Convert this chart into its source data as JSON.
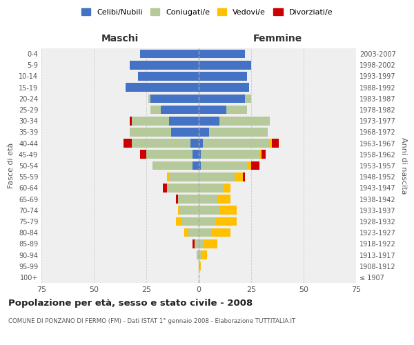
{
  "age_groups": [
    "100+",
    "95-99",
    "90-94",
    "85-89",
    "80-84",
    "75-79",
    "70-74",
    "65-69",
    "60-64",
    "55-59",
    "50-54",
    "45-49",
    "40-44",
    "35-39",
    "30-34",
    "25-29",
    "20-24",
    "15-19",
    "10-14",
    "5-9",
    "0-4"
  ],
  "birth_years": [
    "≤ 1907",
    "1908-1912",
    "1913-1917",
    "1918-1922",
    "1923-1927",
    "1928-1932",
    "1933-1937",
    "1938-1942",
    "1943-1947",
    "1948-1952",
    "1953-1957",
    "1958-1962",
    "1963-1967",
    "1968-1972",
    "1973-1977",
    "1978-1982",
    "1983-1987",
    "1988-1992",
    "1993-1997",
    "1998-2002",
    "2003-2007"
  ],
  "maschi": {
    "celibi": [
      0,
      0,
      0,
      0,
      0,
      0,
      0,
      0,
      0,
      0,
      3,
      3,
      4,
      13,
      14,
      18,
      23,
      35,
      29,
      33,
      28
    ],
    "coniugati": [
      0,
      0,
      1,
      2,
      5,
      8,
      9,
      10,
      15,
      14,
      19,
      22,
      28,
      20,
      18,
      5,
      1,
      0,
      0,
      0,
      0
    ],
    "vedovi": [
      0,
      0,
      0,
      0,
      2,
      3,
      1,
      0,
      0,
      1,
      0,
      0,
      0,
      0,
      0,
      0,
      0,
      0,
      0,
      0,
      0
    ],
    "divorziati": [
      0,
      0,
      0,
      1,
      0,
      0,
      0,
      1,
      2,
      0,
      0,
      3,
      4,
      0,
      1,
      0,
      0,
      0,
      0,
      0,
      0
    ]
  },
  "femmine": {
    "nubili": [
      0,
      0,
      0,
      0,
      0,
      0,
      0,
      0,
      0,
      0,
      1,
      1,
      2,
      5,
      10,
      13,
      22,
      24,
      23,
      25,
      22
    ],
    "coniugate": [
      0,
      0,
      1,
      2,
      6,
      8,
      10,
      9,
      12,
      17,
      22,
      28,
      32,
      28,
      24,
      10,
      3,
      0,
      0,
      0,
      0
    ],
    "vedove": [
      0,
      1,
      3,
      7,
      9,
      10,
      8,
      6,
      3,
      4,
      2,
      1,
      1,
      0,
      0,
      0,
      0,
      0,
      0,
      0,
      0
    ],
    "divorziate": [
      0,
      0,
      0,
      0,
      0,
      0,
      0,
      0,
      0,
      1,
      4,
      2,
      3,
      0,
      0,
      0,
      0,
      0,
      0,
      0,
      0
    ]
  },
  "colors": {
    "celibi_nubili": "#4472c4",
    "coniugati": "#b5c99a",
    "vedovi": "#ffc000",
    "divorziati": "#cc0000"
  },
  "xlim": 75,
  "title": "Popolazione per età, sesso e stato civile - 2008",
  "subtitle": "COMUNE DI PONZANO DI FERMO (FM) - Dati ISTAT 1° gennaio 2008 - Elaborazione TUTTITALIA.IT",
  "xlabel_left": "Maschi",
  "xlabel_right": "Femmine",
  "ylabel_left": "Fasce di età",
  "ylabel_right": "Anni di nascita",
  "legend_labels": [
    "Celibi/Nubili",
    "Coniugati/e",
    "Vedovi/e",
    "Divorziati/e"
  ],
  "bg_color": "#ffffff",
  "plot_bg_color": "#efefef",
  "grid_color": "#cccccc"
}
